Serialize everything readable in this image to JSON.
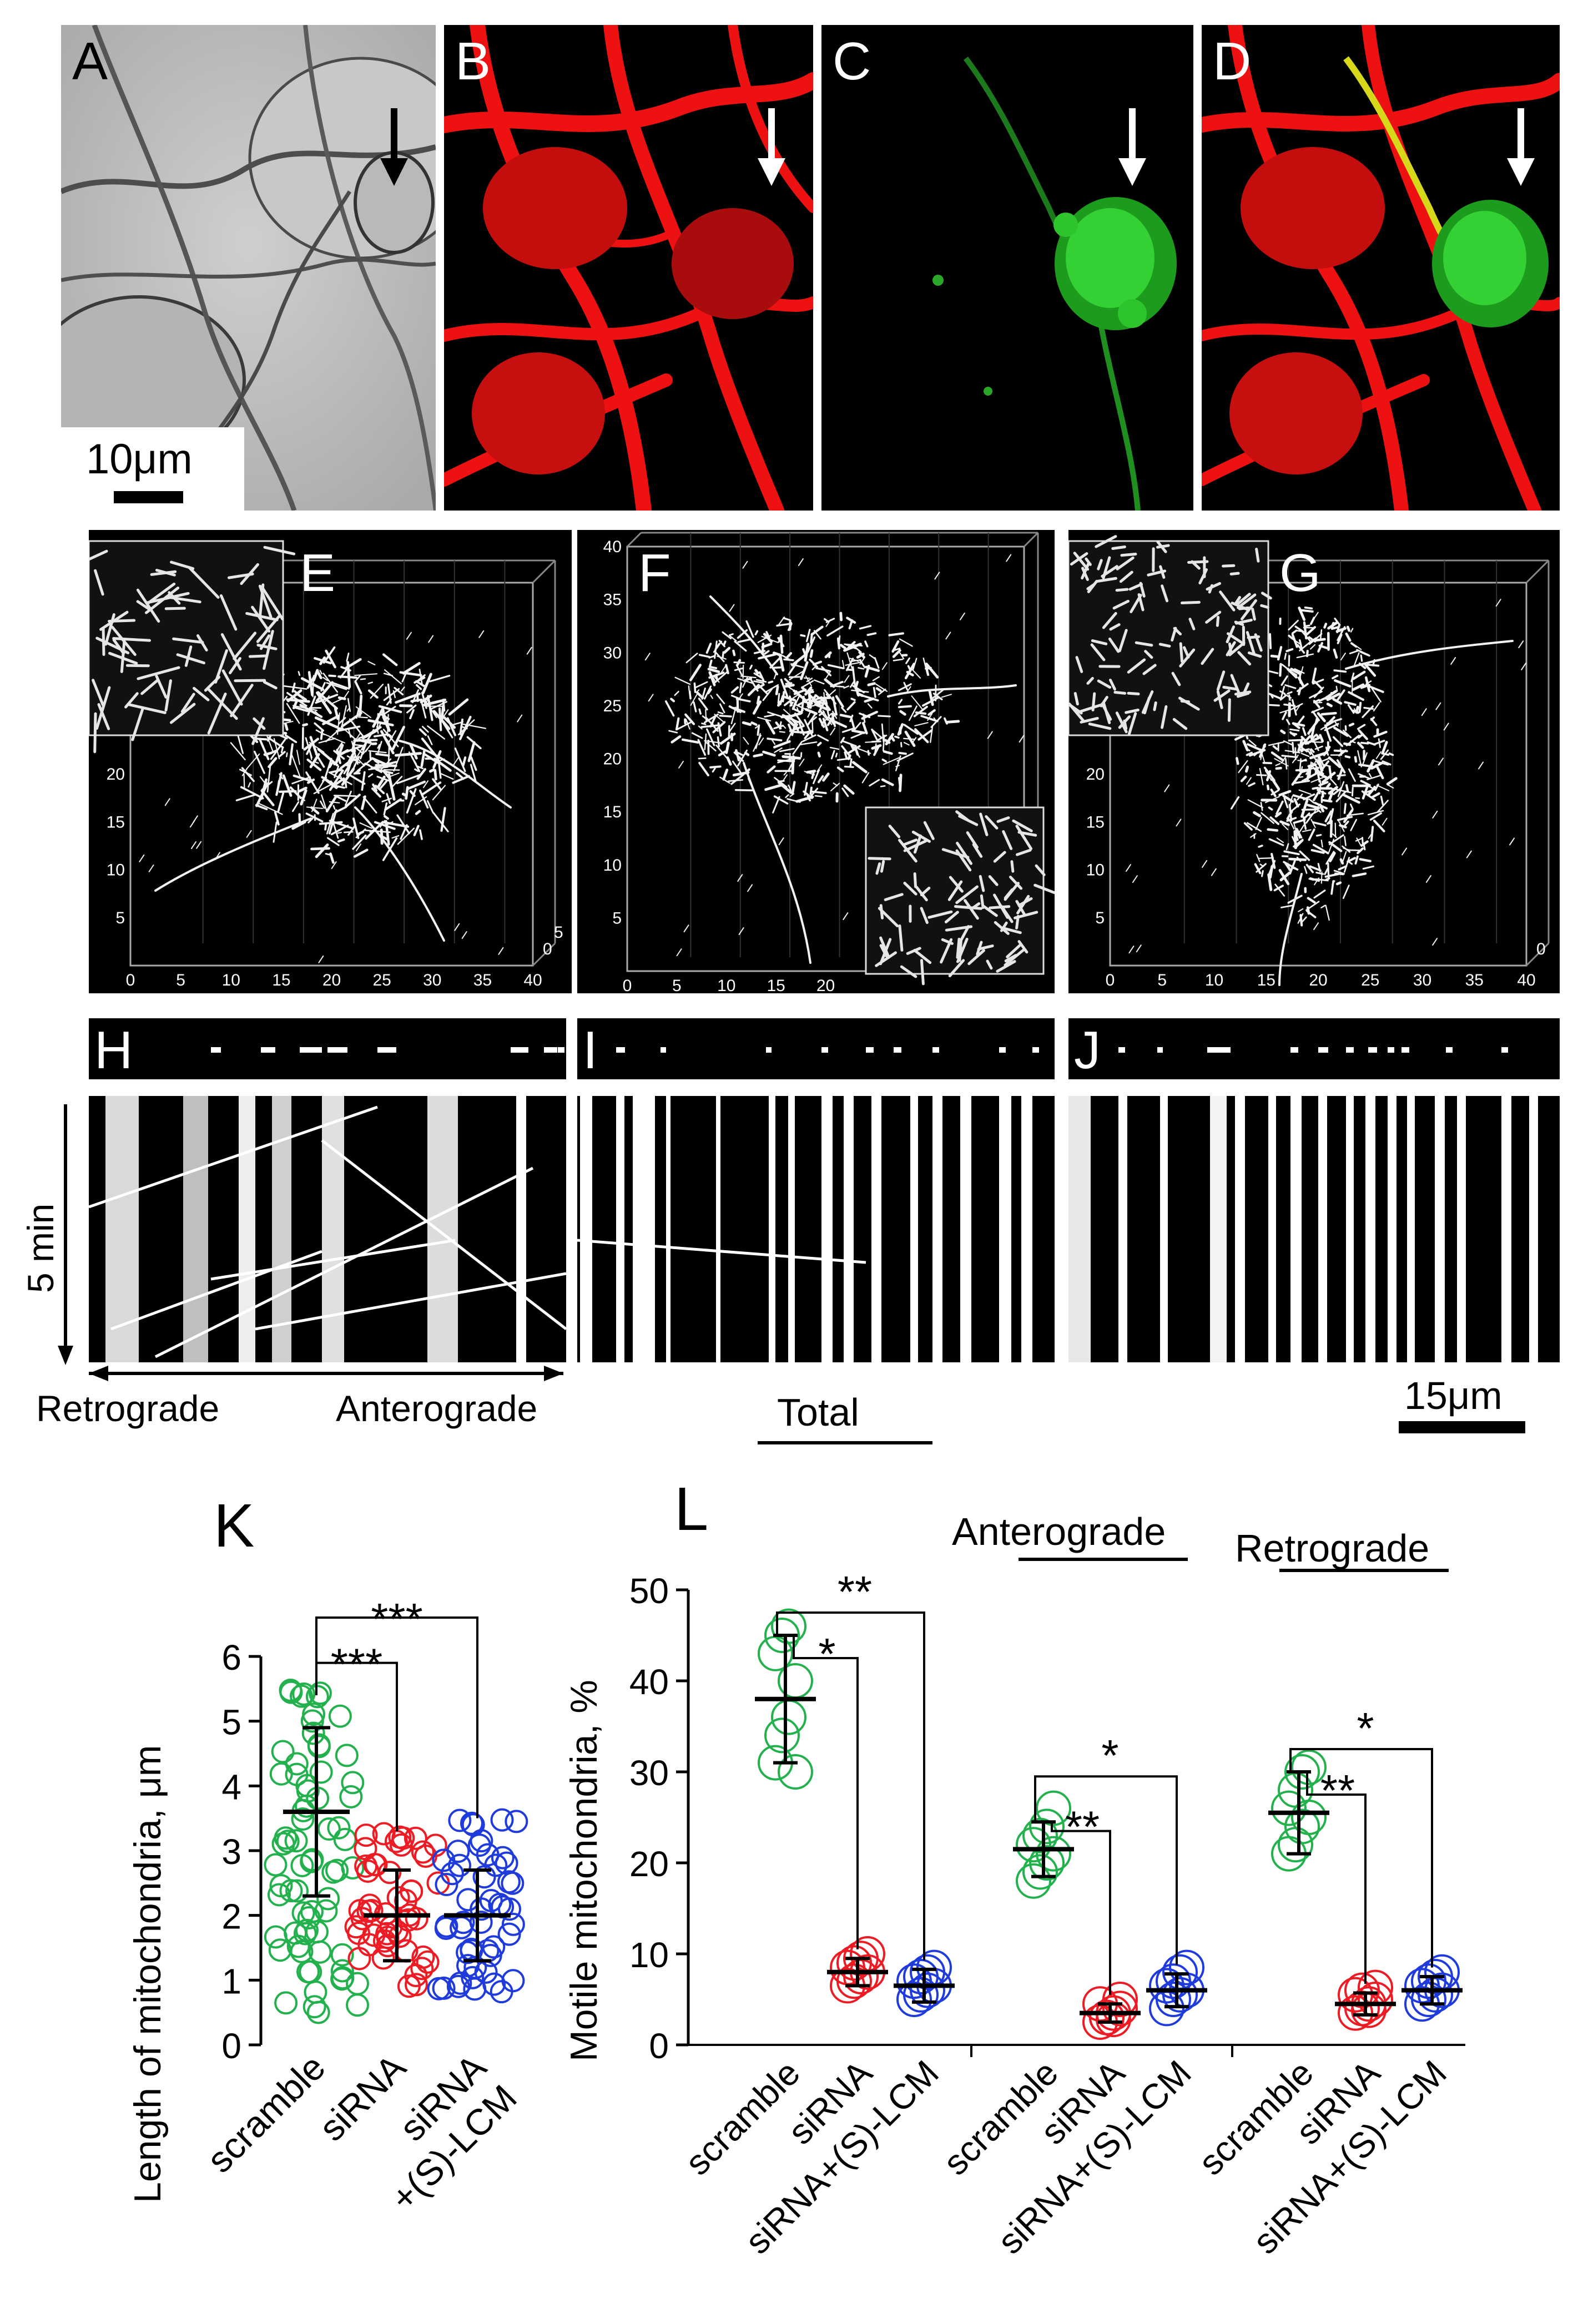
{
  "panels": {
    "A": {
      "label": "A",
      "scale_bar": "10μm"
    },
    "B": {
      "label": "B"
    },
    "C": {
      "label": "C"
    },
    "D": {
      "label": "D"
    },
    "E": {
      "label": "E",
      "x_ticks": [
        "0",
        "5",
        "10",
        "15",
        "20",
        "25",
        "30",
        "35",
        "40"
      ],
      "y_ticks": [
        "5",
        "10",
        "15",
        "20"
      ],
      "z_ticks": [
        "0",
        "5"
      ]
    },
    "F": {
      "label": "F",
      "x_ticks": [
        "0",
        "5",
        "10",
        "15",
        "20"
      ],
      "y_ticks": [
        "5",
        "10",
        "15",
        "20",
        "25",
        "30",
        "35",
        "40"
      ]
    },
    "G": {
      "label": "G",
      "x_ticks": [
        "0",
        "5",
        "10",
        "15",
        "20",
        "25",
        "30",
        "35",
        "40"
      ],
      "y_ticks": [
        "5",
        "10",
        "15",
        "20"
      ],
      "z_ticks": [
        "0"
      ]
    },
    "H": {
      "label": "H"
    },
    "I": {
      "label": "I"
    },
    "J": {
      "label": "J"
    }
  },
  "kymograph": {
    "time_label": "5 min",
    "retrograde": "Retrograde",
    "anterograde": "Anterograde",
    "scale_bar": "15μm"
  },
  "chart_data": [
    {
      "panel": "K",
      "type": "scatter",
      "label": "K",
      "ylabel": "Length of mitochondria, μm",
      "ylim": [
        0,
        6
      ],
      "yticks": [
        "0",
        "1",
        "2",
        "3",
        "4",
        "5",
        "6"
      ],
      "categories": [
        "scramble",
        "siRNA",
        "siRNA +(S)-LCM"
      ],
      "cat_line1": [
        "scramble",
        "siRNA",
        "siRNA"
      ],
      "cat_line2": [
        "",
        "",
        "+(S)-LCM"
      ],
      "colors": [
        "#22b14c",
        "#ed1c24",
        "#1f3bdb"
      ],
      "mean": [
        3.6,
        2.0,
        2.0
      ],
      "sd": [
        1.3,
        0.7,
        0.7
      ],
      "significance": [
        {
          "pair": [
            0,
            1
          ],
          "label": "***"
        },
        {
          "pair": [
            0,
            2
          ],
          "label": "***"
        }
      ]
    },
    {
      "panel": "L",
      "type": "scatter",
      "label": "L",
      "ylabel": "Motile mitochondria, %",
      "ylim": [
        0,
        50
      ],
      "yticks": [
        "0",
        "10",
        "20",
        "30",
        "40",
        "50"
      ],
      "group_titles": [
        "Total",
        "Anterograde",
        "Retrograde"
      ],
      "categories": [
        "scramble",
        "siRNA",
        "siRNA+(S)-LCM"
      ],
      "colors": [
        "#22b14c",
        "#ed1c24",
        "#1f3bdb"
      ],
      "groups": [
        {
          "name": "Total",
          "mean": [
            38,
            8,
            6.5
          ],
          "sd": [
            7,
            1.5,
            1.8
          ],
          "points": [
            [
              31,
              34,
              36,
              40,
              43,
              45,
              46,
              30
            ],
            [
              6.5,
              7,
              7.5,
              8,
              8.5,
              9,
              9.5,
              10
            ],
            [
              5,
              5.5,
              6,
              6.5,
              7,
              7.5,
              8,
              8.5
            ]
          ],
          "significance": [
            {
              "pair": [
                0,
                1
              ],
              "label": "*"
            },
            {
              "pair": [
                0,
                2
              ],
              "label": "**"
            }
          ]
        },
        {
          "name": "Anterograde",
          "mean": [
            21.5,
            3.5,
            6
          ],
          "sd": [
            3,
            1,
            1.8
          ],
          "points": [
            [
              18,
              19,
              20,
              21,
              22,
              23,
              24,
              26
            ],
            [
              2.5,
              3,
              3.5,
              4,
              4.5,
              3,
              2.8,
              5
            ],
            [
              4,
              5,
              5.5,
              6,
              6.5,
              7,
              8,
              8.5
            ]
          ],
          "significance": [
            {
              "pair": [
                0,
                1
              ],
              "label": "**"
            },
            {
              "pair": [
                0,
                2
              ],
              "label": "*"
            }
          ]
        },
        {
          "name": "Retrograde",
          "mean": [
            25.5,
            4.5,
            6
          ],
          "sd": [
            4.5,
            1.2,
            1.5
          ],
          "points": [
            [
              21,
              22,
              24,
              25,
              26,
              28,
              30,
              30.5
            ],
            [
              3.5,
              4,
              4.5,
              5,
              5.5,
              6,
              3.8,
              6.3
            ],
            [
              4.5,
              5,
              5.5,
              6,
              6.5,
              7,
              7.5,
              8
            ]
          ],
          "significance": [
            {
              "pair": [
                0,
                1
              ],
              "label": "**"
            },
            {
              "pair": [
                0,
                2
              ],
              "label": "*"
            }
          ]
        }
      ]
    }
  ]
}
